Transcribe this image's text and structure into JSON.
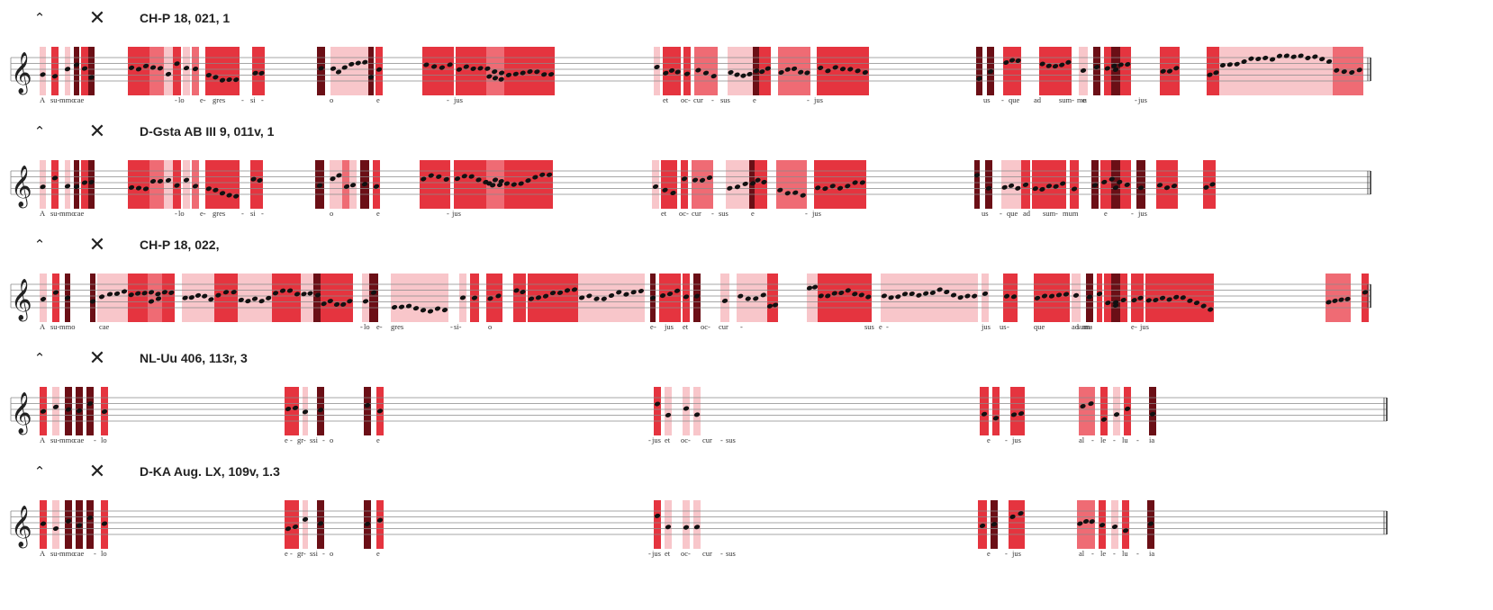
{
  "colors": {
    "dark": "#6b0f16",
    "red": "#e5343f",
    "mid": "#ef6b74",
    "light": "#f8c6ca",
    "staff": "#8a8a8a",
    "note": "#111111"
  },
  "icons": {
    "collapse": "chevron-up-icon",
    "close": "close-icon"
  },
  "panels": [
    {
      "title": "CH-P 18, 021, 1",
      "syllables": [
        "A",
        "su-",
        "mmo",
        "cae",
        "-",
        "lo",
        "e-",
        "gres",
        "-",
        "si",
        "-",
        "o",
        "e",
        "-",
        "jus",
        "et",
        "oc-",
        "cur",
        "-",
        "sus",
        "e",
        "-",
        "jus",
        "us",
        "-",
        "que",
        "ad",
        "sum-",
        "mu",
        "e",
        "-",
        "jus"
      ]
    },
    {
      "title": "D-Gsta AB III 9, 011v, 1",
      "syllables": [
        "A",
        "su-",
        "mmo",
        "cae",
        "-",
        "lo",
        "e-",
        "gres",
        "-",
        "si",
        "-",
        "o",
        "e",
        "-",
        "jus",
        "et",
        "oc-",
        "cur",
        "-",
        "sus",
        "e",
        "-",
        "jus",
        "us",
        "-",
        "que",
        "ad",
        "sum",
        "-",
        "mum",
        "e",
        "-",
        "jus"
      ]
    },
    {
      "title": "CH-P 18, 022,",
      "syllables": [
        "A",
        "su-",
        "mmo",
        "cae",
        "-",
        "lo",
        "e-",
        "gres",
        "-",
        "si-",
        "o",
        "e",
        "-",
        "jus",
        "et",
        "oc-",
        "cur",
        "-",
        "sus",
        "e",
        "-",
        "jus",
        "us",
        "-",
        "que",
        "ad",
        "sum-",
        "mu",
        "e",
        "-",
        "jus"
      ]
    },
    {
      "title": "NL-Uu 406, 113r, 3",
      "syllables": [
        "A",
        "su-",
        "mmo",
        "cae",
        "-",
        "lo",
        "e",
        "-",
        "gr-",
        "ssi",
        "-",
        "o",
        "e",
        "-",
        "jus",
        "et",
        "oc-",
        "cur",
        "-",
        "sus",
        "e",
        "-",
        "jus",
        "al",
        "-",
        "le",
        "-",
        "lu",
        "-",
        "ia"
      ]
    },
    {
      "title": "D-KA Aug. LX, 109v, 1.3",
      "syllables": [
        "A",
        "su-",
        "mmo",
        "cae",
        "-",
        "lo",
        "e",
        "-",
        "gr-",
        "ssi",
        "-",
        "o",
        "e",
        "-",
        "jus",
        "et",
        "oc-",
        "cur",
        "-",
        "sus",
        "e",
        "-",
        "jus",
        "al",
        "-",
        "le",
        "-",
        "lu",
        "-",
        "ia"
      ]
    }
  ]
}
